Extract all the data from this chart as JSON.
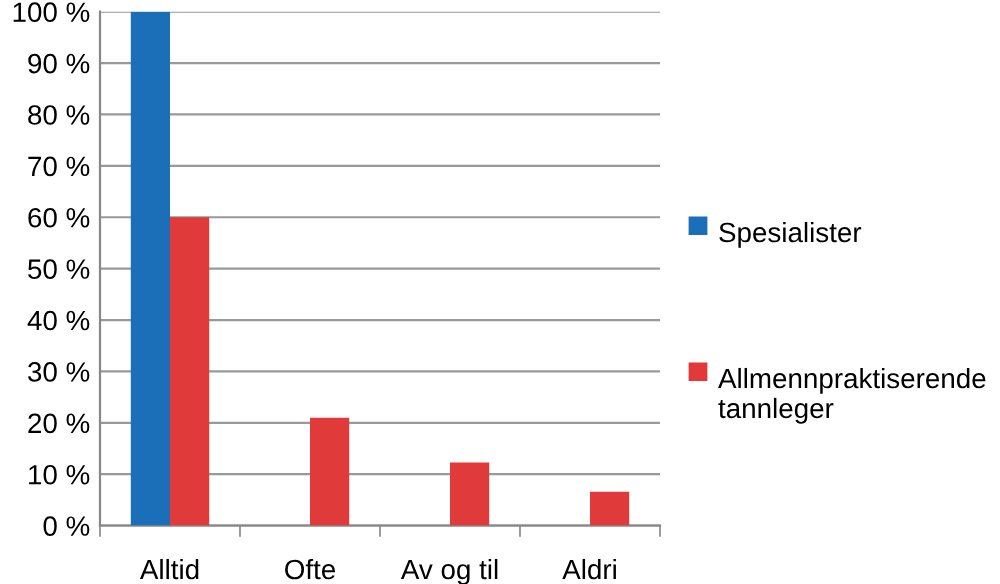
{
  "chart_data": {
    "type": "bar",
    "categories": [
      "Alltid",
      "Ofte",
      "Av og til",
      "Aldri"
    ],
    "series": [
      {
        "name": "Spesialister",
        "color": "#1a6fb8",
        "values": [
          100,
          0,
          0,
          0
        ]
      },
      {
        "name": "Allmennpraktiserende tannleger",
        "color": "#e03a3a",
        "values": [
          60,
          21,
          12.3,
          6.6
        ]
      }
    ],
    "ylim": [
      0,
      100
    ],
    "yticks": [
      {
        "value": 0,
        "label": "0 %"
      },
      {
        "value": 10,
        "label": "10 %"
      },
      {
        "value": 20,
        "label": "20 %"
      },
      {
        "value": 30,
        "label": "30 %"
      },
      {
        "value": 40,
        "label": "40 %"
      },
      {
        "value": 50,
        "label": "50 %"
      },
      {
        "value": 60,
        "label": "60 %"
      },
      {
        "value": 70,
        "label": "70 %"
      },
      {
        "value": 80,
        "label": "80 %"
      },
      {
        "value": 90,
        "label": "90 %"
      },
      {
        "value": 100,
        "label": "100 %"
      }
    ],
    "grid": "y",
    "legend": "right"
  }
}
